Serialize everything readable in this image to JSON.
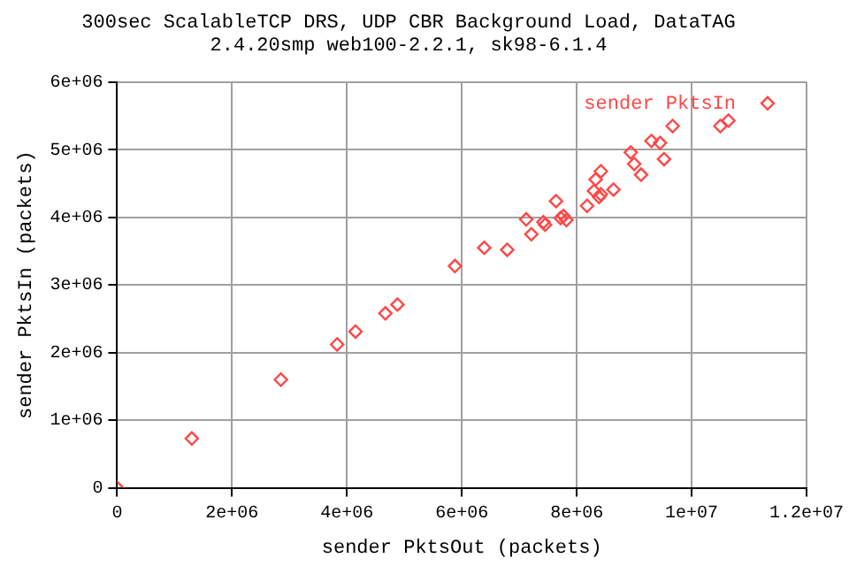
{
  "chart_data": {
    "type": "scatter",
    "title": "300sec ScalableTCP DRS, UDP CBR Background Load, DataTAG",
    "subtitle": "2.4.20smp web100-2.2.1, sk98-6.1.4",
    "xlabel": "sender PktsOut (packets)",
    "ylabel": "sender PktsIn (packets)",
    "series": [
      {
        "name": "sender PktsIn",
        "color": "#ff4848",
        "x": [
          0,
          1300000.0,
          2850000.0,
          3830000.0,
          4150000.0,
          4670000.0,
          4880000.0,
          5880000.0,
          6390000.0,
          6790000.0,
          7120000.0,
          7210000.0,
          7420000.0,
          7450000.0,
          7640000.0,
          7720000.0,
          7770000.0,
          7820000.0,
          8180000.0,
          8300000.0,
          8390000.0,
          8420000.0,
          8330000.0,
          8420000.0,
          8640000.0,
          8940000.0,
          9000000.0,
          9120000.0,
          9300000.0,
          9450000.0,
          9520000.0,
          9670000.0,
          10500000.0,
          10640000.0
        ],
        "values": [
          0,
          730000.0,
          1600000.0,
          2120000.0,
          2310000.0,
          2580000.0,
          2710000.0,
          3280000.0,
          3550000.0,
          3520000.0,
          3970000.0,
          3750000.0,
          3930000.0,
          3890000.0,
          4240000.0,
          3990000.0,
          4020000.0,
          3960000.0,
          4170000.0,
          4390000.0,
          4300000.0,
          4340000.0,
          4560000.0,
          4680000.0,
          4410000.0,
          4960000.0,
          4790000.0,
          4630000.0,
          5130000.0,
          5100000.0,
          4860000.0,
          5350000.0,
          5350000.0,
          5430000.0
        ]
      }
    ],
    "xlim": [
      0,
      12000000.0
    ],
    "ylim": [
      0,
      6000000.0
    ],
    "xticks": [
      0,
      {
        "value": 2000000.0,
        "label": "2e+06"
      },
      {
        "value": 4000000.0,
        "label": "4e+06"
      },
      {
        "value": 6000000.0,
        "label": "6e+06"
      },
      {
        "value": 8000000.0,
        "label": "8e+06"
      },
      {
        "value": 10000000.0,
        "label": "1e+07"
      },
      {
        "value": 12000000.0,
        "label": "1.2e+07"
      }
    ],
    "yticks": [
      0,
      {
        "value": 1000000.0,
        "label": "1e+06"
      },
      {
        "value": 2000000.0,
        "label": "2e+06"
      },
      {
        "value": 3000000.0,
        "label": "3e+06"
      },
      {
        "value": 4000000.0,
        "label": "4e+06"
      },
      {
        "value": 5000000.0,
        "label": "5e+06"
      },
      {
        "value": 6000000.0,
        "label": "6e+06"
      }
    ],
    "grid": true,
    "legend": "top right",
    "marker": "diamond"
  }
}
